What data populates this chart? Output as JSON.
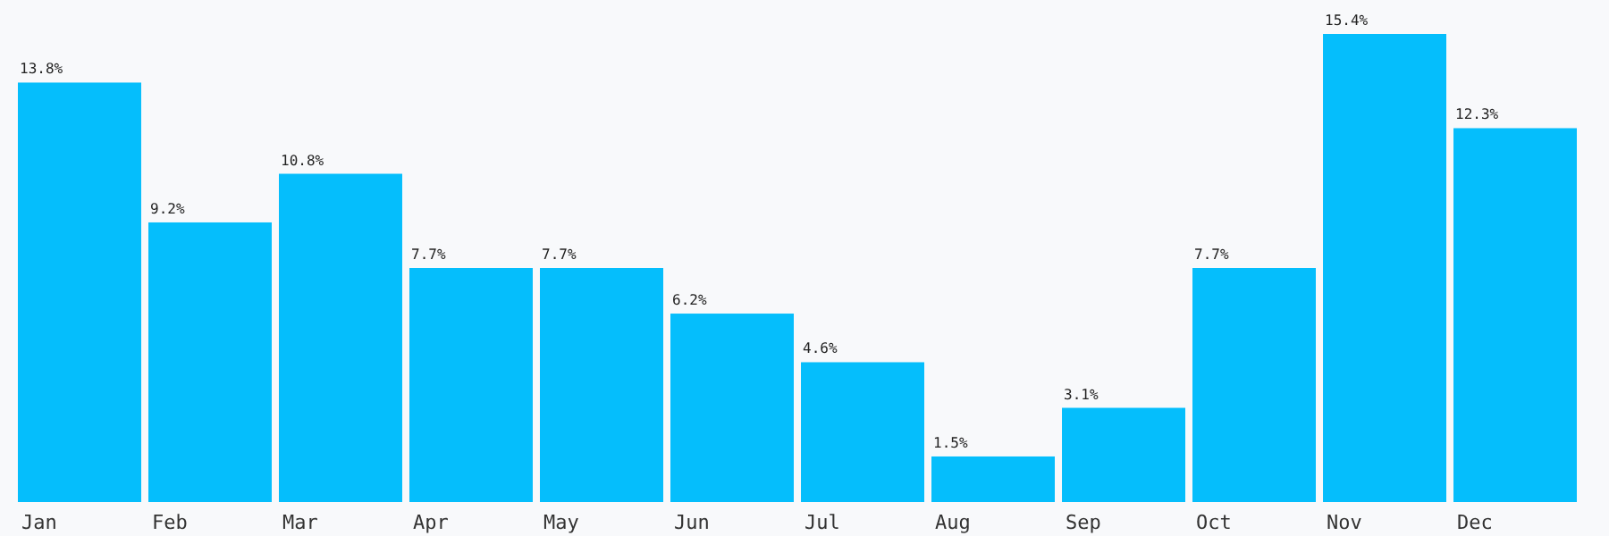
{
  "chart_data": {
    "type": "bar",
    "categories": [
      "Jan",
      "Feb",
      "Mar",
      "Apr",
      "May",
      "Jun",
      "Jul",
      "Aug",
      "Sep",
      "Oct",
      "Nov",
      "Dec"
    ],
    "values": [
      13.8,
      9.2,
      10.8,
      7.7,
      7.7,
      6.2,
      4.6,
      1.5,
      3.1,
      7.7,
      15.4,
      12.3
    ],
    "color": "#05befc",
    "value_labels": [
      "13.8%",
      "9.2%",
      "10.8%",
      "7.7%",
      "7.7%",
      "6.2%",
      "4.6%",
      "1.5%",
      "3.1%",
      "7.7%",
      "15.4%",
      "12.3%"
    ]
  }
}
